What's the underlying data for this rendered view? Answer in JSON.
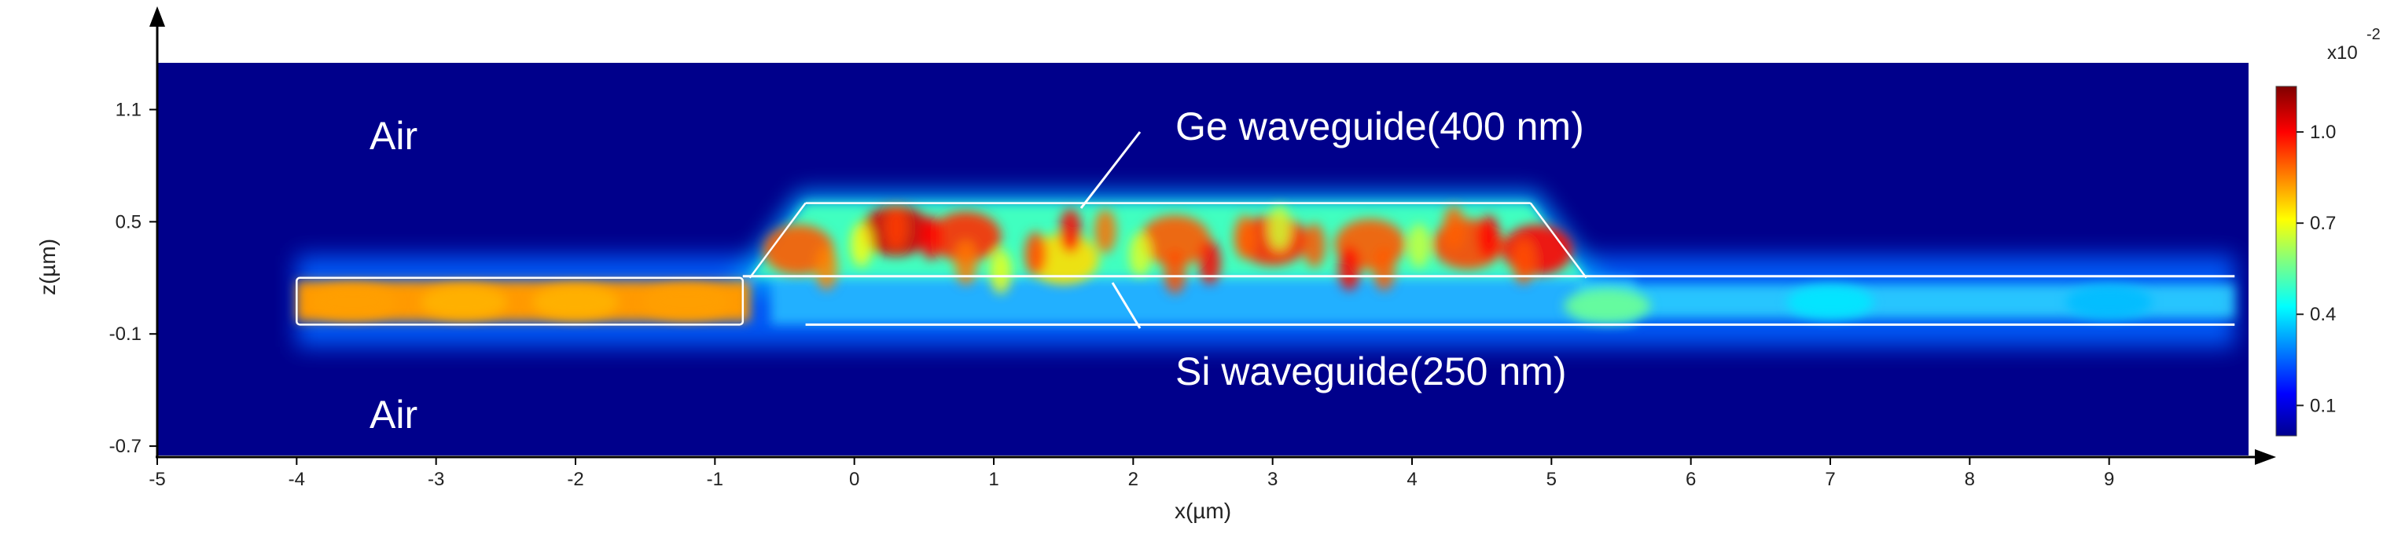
{
  "chart_data": {
    "type": "heatmap",
    "title": "",
    "xlabel": "x(µm)",
    "ylabel": "z(µm)",
    "xlim": [
      -5,
      10
    ],
    "ylim": [
      -0.75,
      1.35
    ],
    "x_ticks": [
      -5,
      -4,
      -3,
      -2,
      -1,
      0,
      1,
      2,
      3,
      4,
      5,
      6,
      7,
      8,
      9
    ],
    "y_ticks": [
      1.1,
      0.5,
      -0.1,
      -0.7
    ],
    "grid": false,
    "colormap": "jet",
    "colorbar": {
      "exponent_label": "x10",
      "exponent": "-2",
      "range": [
        0,
        1.15
      ],
      "ticks": [
        1.0,
        0.7,
        0.4,
        0.1
      ]
    },
    "annotations": [
      {
        "text": "Air",
        "x": -3.7,
        "z": 0.95
      },
      {
        "text": "Air",
        "x": -3.7,
        "z": -0.6
      },
      {
        "text": "Ge waveguide(400 nm)",
        "x": 2.3,
        "z": 1.0
      },
      {
        "text": "Si waveguide(250 nm)",
        "x": 2.3,
        "z": -0.35
      }
    ],
    "structures": {
      "si_waveguide": {
        "x_start": -4.0,
        "x_end": 9.9,
        "z_bottom": -0.05,
        "z_top": 0.2
      },
      "ge_waveguide": {
        "x_start": -0.75,
        "x_flat_start": -0.35,
        "x_flat_end": 4.85,
        "x_end": 5.25,
        "z_bottom": 0.2,
        "z_top": 0.6
      }
    },
    "field_intensity_peaks": [
      {
        "x": -3.6,
        "z": 0.07,
        "value": 0.82
      },
      {
        "x": -2.8,
        "z": 0.07,
        "value": 0.8
      },
      {
        "x": -2.0,
        "z": 0.07,
        "value": 0.8
      },
      {
        "x": -1.2,
        "z": 0.07,
        "value": 0.82
      },
      {
        "x": -0.4,
        "z": 0.35,
        "value": 0.9
      },
      {
        "x": 0.3,
        "z": 0.45,
        "value": 1.05
      },
      {
        "x": 0.8,
        "z": 0.42,
        "value": 0.95
      },
      {
        "x": 1.5,
        "z": 0.3,
        "value": 0.75
      },
      {
        "x": 2.3,
        "z": 0.4,
        "value": 0.9
      },
      {
        "x": 3.0,
        "z": 0.4,
        "value": 0.95
      },
      {
        "x": 3.7,
        "z": 0.38,
        "value": 0.9
      },
      {
        "x": 4.4,
        "z": 0.38,
        "value": 0.92
      },
      {
        "x": 4.9,
        "z": 0.35,
        "value": 1.0
      },
      {
        "x": 5.4,
        "z": 0.05,
        "value": 0.55
      },
      {
        "x": 7.0,
        "z": 0.07,
        "value": 0.4
      },
      {
        "x": 9.0,
        "z": 0.07,
        "value": 0.35
      }
    ]
  }
}
